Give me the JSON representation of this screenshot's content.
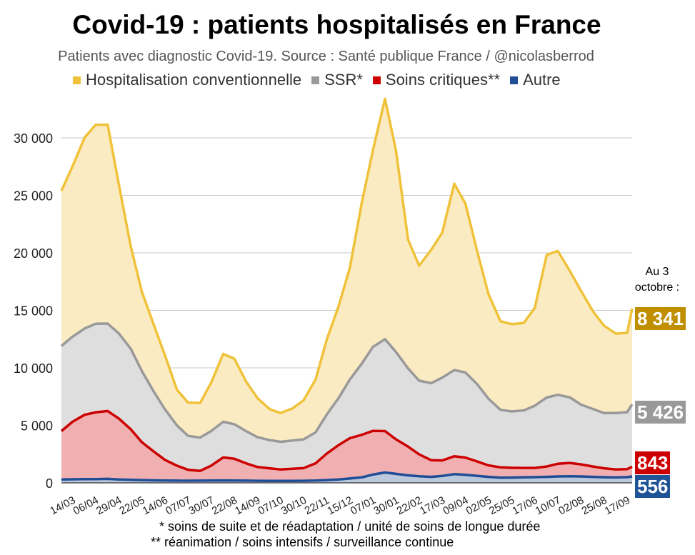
{
  "header": {
    "title": "Covid-19 : patients hospitalisés en France",
    "subtitle": "Patients avec diagnostic Covid-19. Source : Santé publique France / @nicolasberrod"
  },
  "legend": [
    {
      "label": "Hospitalisation conventionnelle",
      "color": "#F0C23A"
    },
    {
      "label": "SSR*",
      "color": "#999999"
    },
    {
      "label": "Soins critiques**",
      "color": "#CC0000"
    },
    {
      "label": "Autre",
      "color": "#1F4E96"
    }
  ],
  "annotation": {
    "line1": "Au 3",
    "line2": "octobre :"
  },
  "end_labels": [
    {
      "series": "Hospitalisation conventionnelle",
      "text": "8 341",
      "bg": "#BF8F00"
    },
    {
      "series": "SSR*",
      "text": "5 426",
      "bg": "#999999"
    },
    {
      "series": "Soins critiques**",
      "text": "843",
      "bg": "#CC0000"
    },
    {
      "series": "Autre",
      "text": "556",
      "bg": "#1F5596"
    }
  ],
  "footnotes": {
    "ssr": "* soins de suite et de réadaptation / unité de soins de longue durée",
    "critical": "** réanimation / soins intensifs / surveillance continue"
  },
  "chart_data": {
    "type": "area",
    "stacked": true,
    "title": "Covid-19 : patients hospitalisés en France",
    "xlabel": "",
    "ylabel": "",
    "ylim": [
      0,
      33000
    ],
    "yticks": [
      0,
      5000,
      10000,
      15000,
      20000,
      25000,
      30000
    ],
    "ytick_labels": [
      "0",
      "5 000",
      "10 000",
      "15 000",
      "20 000",
      "25 000",
      "30 000"
    ],
    "xtick_labels": [
      "14/03",
      "06/04",
      "29/04",
      "22/05",
      "14/06",
      "07/07",
      "30/07",
      "22/08",
      "14/09",
      "07/10",
      "30/10",
      "22/11",
      "15/12",
      "07/01",
      "30/01",
      "22/02",
      "17/03",
      "09/04",
      "02/05",
      "25/05",
      "17/06",
      "10/07",
      "02/08",
      "25/08",
      "17/09"
    ],
    "grid": true,
    "legend_position": "top",
    "x": [
      "14/03",
      "25/03",
      "06/04",
      "17/04",
      "29/04",
      "10/05",
      "22/05",
      "02/06",
      "14/06",
      "25/06",
      "07/07",
      "18/07",
      "30/07",
      "10/08",
      "22/08",
      "02/09",
      "14/09",
      "25/09",
      "07/10",
      "18/10",
      "30/10",
      "10/11",
      "22/11",
      "03/12",
      "15/12",
      "26/12",
      "07/01",
      "18/01",
      "30/01",
      "10/02",
      "22/02",
      "05/03",
      "17/03",
      "28/03",
      "09/04",
      "20/04",
      "02/05",
      "13/05",
      "25/05",
      "05/06",
      "17/06",
      "28/06",
      "10/07",
      "21/07",
      "02/08",
      "13/08",
      "25/08",
      "05/09",
      "17/09",
      "28/09",
      "03/10"
    ],
    "series": [
      {
        "name": "Autre",
        "values": [
          300,
          310,
          320,
          330,
          350,
          300,
          260,
          240,
          220,
          200,
          190,
          185,
          190,
          200,
          210,
          200,
          190,
          180,
          170,
          170,
          175,
          180,
          200,
          240,
          290,
          380,
          480,
          720,
          900,
          780,
          650,
          580,
          520,
          600,
          760,
          700,
          600,
          520,
          450,
          460,
          480,
          500,
          520,
          560,
          580,
          560,
          520,
          490,
          470,
          500,
          556
        ]
      },
      {
        "name": "Soins critiques**",
        "values": [
          4200,
          5000,
          5600,
          5800,
          5900,
          5300,
          4400,
          3300,
          2500,
          1800,
          1300,
          950,
          850,
          1300,
          2000,
          1900,
          1500,
          1200,
          1100,
          1000,
          1050,
          1100,
          1500,
          2300,
          3000,
          3500,
          3700,
          3800,
          3600,
          3000,
          2500,
          1900,
          1450,
          1350,
          1550,
          1500,
          1250,
          1000,
          900,
          850,
          820,
          800,
          900,
          1100,
          1150,
          1050,
          900,
          780,
          700,
          700,
          843
        ]
      },
      {
        "name": "SSR*",
        "values": [
          7400,
          7400,
          7500,
          7700,
          7600,
          7400,
          7000,
          6200,
          5200,
          4400,
          3500,
          2950,
          2900,
          3000,
          3100,
          3000,
          2800,
          2600,
          2450,
          2400,
          2450,
          2500,
          2700,
          3400,
          4100,
          5100,
          6200,
          7300,
          8000,
          7600,
          6800,
          6400,
          6700,
          7200,
          7500,
          7400,
          6700,
          5800,
          5000,
          4900,
          5000,
          5400,
          6000,
          6000,
          5700,
          5200,
          5000,
          4800,
          4900,
          4950,
          5426
        ]
      },
      {
        "name": "Hospitalisation conventionnelle",
        "values": [
          13500,
          14800,
          16600,
          17300,
          17300,
          13000,
          8900,
          6900,
          5800,
          4700,
          3100,
          2900,
          3000,
          4200,
          5900,
          5700,
          4300,
          3400,
          2700,
          2500,
          2800,
          3400,
          4600,
          6500,
          8000,
          9700,
          14000,
          17100,
          20900,
          17500,
          11200,
          10000,
          11600,
          12600,
          16200,
          14700,
          11500,
          9100,
          7700,
          7600,
          7600,
          8500,
          12400,
          12500,
          11000,
          9900,
          8500,
          7600,
          6900,
          6900,
          8341
        ]
      }
    ],
    "last_values": {
      "Hospitalisation conventionnelle": 8341,
      "SSR*": 5426,
      "Soins critiques**": 843,
      "Autre": 556
    },
    "colors": {
      "Hospitalisation conventionnelle": {
        "line": "#F0C23A",
        "fill": "#FBEBC2"
      },
      "SSR*": {
        "line": "#999999",
        "fill": "#DEDEDE"
      },
      "Soins critiques**": {
        "line": "#CC0000",
        "fill": "#F0B0B2"
      },
      "Autre": {
        "line": "#1F4E96",
        "fill": "#BCC8DC"
      }
    }
  }
}
